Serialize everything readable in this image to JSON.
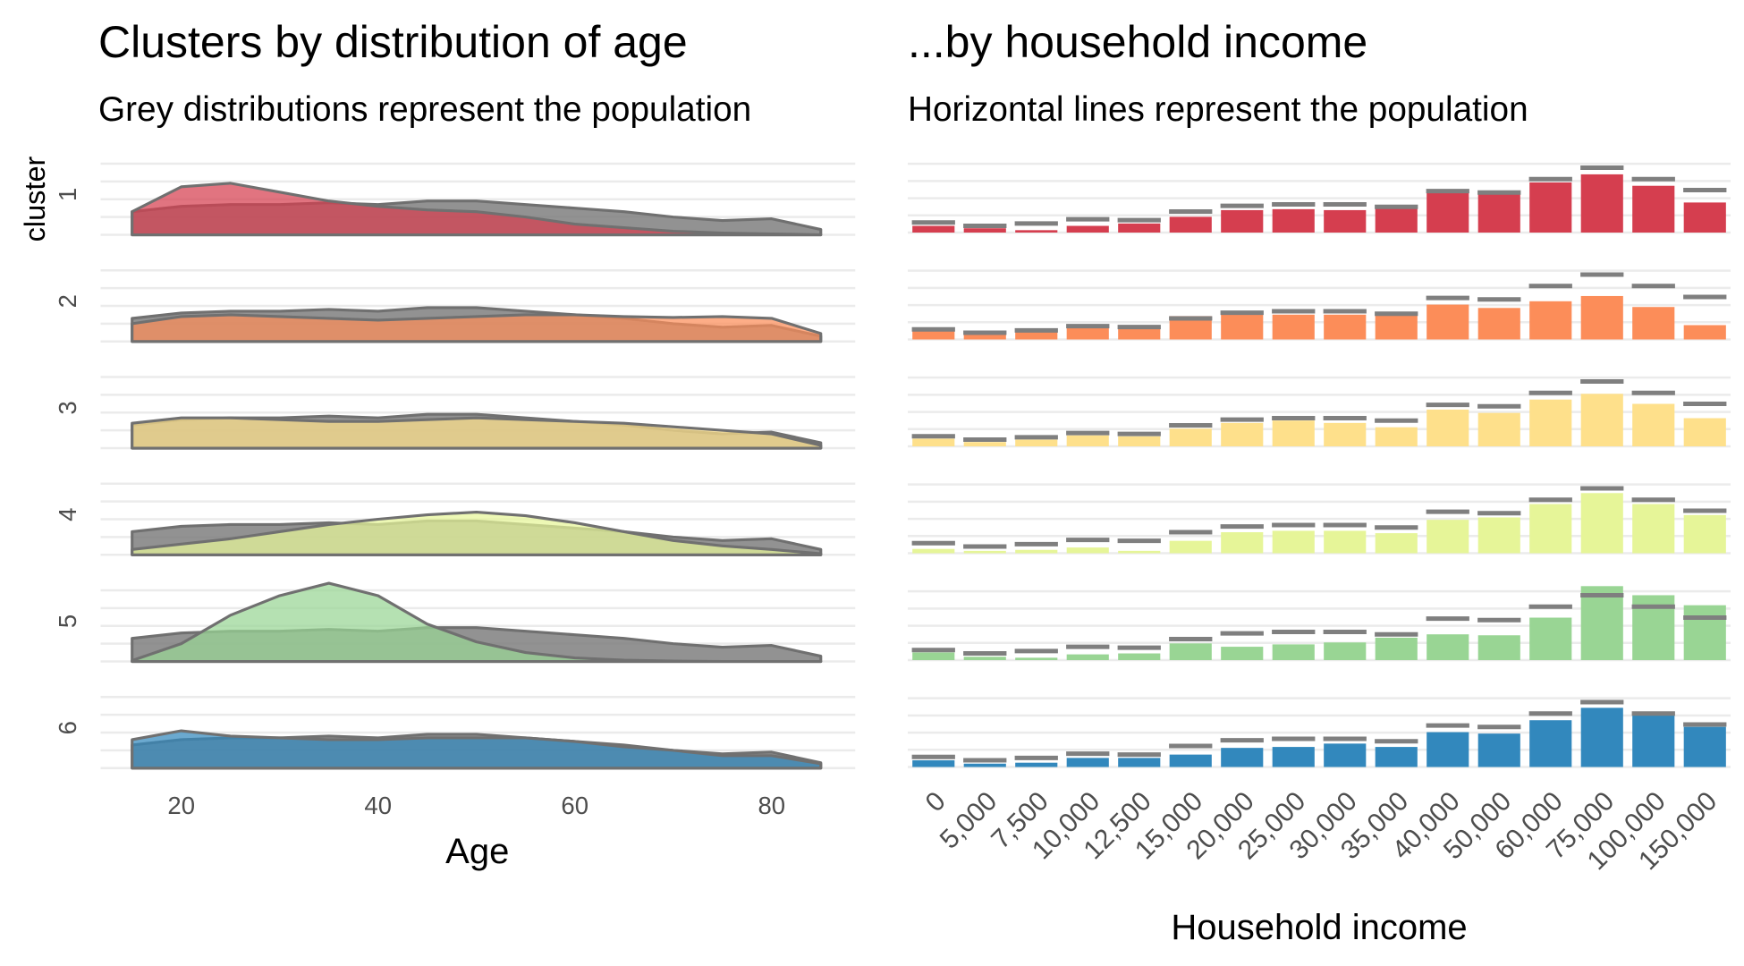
{
  "chart_data": [
    {
      "type": "ridgeline",
      "title": "Clusters by distribution of age",
      "subtitle": "Grey distributions represent the population",
      "x_label": "Age",
      "y_label": "cluster",
      "x": [
        15,
        20,
        25,
        30,
        35,
        40,
        45,
        50,
        55,
        60,
        65,
        70,
        75,
        80,
        85
      ],
      "categories": [
        "1",
        "2",
        "3",
        "4",
        "5",
        "6"
      ],
      "population_color": "#7f7f7f",
      "population_values": [
        0.013,
        0.016,
        0.017,
        0.017,
        0.018,
        0.017,
        0.019,
        0.019,
        0.017,
        0.015,
        0.013,
        0.01,
        0.008,
        0.009,
        0.003
      ],
      "series": [
        {
          "color": "#d53e4f",
          "values": [
            0.013,
            0.027,
            0.029,
            0.024,
            0.019,
            0.016,
            0.014,
            0.013,
            0.01,
            0.006,
            0.004,
            0.002,
            0.001,
            0.0005,
            0
          ]
        },
        {
          "color": "#fc8d59",
          "values": [
            0.01,
            0.014,
            0.015,
            0.014,
            0.013,
            0.012,
            0.013,
            0.014,
            0.015,
            0.015,
            0.014,
            0.0135,
            0.014,
            0.013,
            0.0045
          ]
        },
        {
          "color": "#fee08b",
          "values": [
            0.014,
            0.017,
            0.017,
            0.016,
            0.015,
            0.015,
            0.016,
            0.017,
            0.016,
            0.015,
            0.014,
            0.012,
            0.01,
            0.008,
            0.0015
          ]
        },
        {
          "color": "#e6f598",
          "values": [
            0.003,
            0.006,
            0.009,
            0.013,
            0.017,
            0.02,
            0.0225,
            0.024,
            0.022,
            0.018,
            0.013,
            0.008,
            0.005,
            0.003,
            0.0006
          ]
        },
        {
          "color": "#99d594",
          "values": [
            0.0005,
            0.01,
            0.026,
            0.037,
            0.044,
            0.037,
            0.021,
            0.011,
            0.005,
            0.002,
            0.0007,
            0.0002,
            0,
            0,
            0
          ]
        },
        {
          "color": "#3288bd",
          "values": [
            0.016,
            0.021,
            0.018,
            0.017,
            0.016,
            0.016,
            0.017,
            0.017,
            0.017,
            0.015,
            0.012,
            0.01,
            0.007,
            0.007,
            0.0025
          ]
        }
      ],
      "xlim": [
        11.8,
        88.5
      ],
      "xticks": [
        20,
        40,
        60,
        80
      ],
      "ylim": [
        0,
        0.06
      ],
      "yticks": [
        0,
        0.01,
        0.02,
        0.03,
        0.04
      ],
      "grid": true
    },
    {
      "type": "bar_ridge",
      "title": "...by household income",
      "subtitle": "Horizontal lines represent the population",
      "x_label": "Household income",
      "categories": [
        "0",
        "5,000",
        "7,500",
        "10,000",
        "12,500",
        "15,000",
        "20,000",
        "25,000",
        "30,000",
        "35,000",
        "40,000",
        "50,000",
        "60,000",
        "75,000",
        "100,000",
        "150,000"
      ],
      "population_color": "#7f7f7f",
      "population_values": [
        2.1,
        1.4,
        1.9,
        2.8,
        2.6,
        4.4,
        5.6,
        5.9,
        5.9,
        5.4,
        8.7,
        8.4,
        11.2,
        13.6,
        11.2,
        8.9
      ],
      "series": [
        {
          "color": "#d53e4f",
          "values": [
            1.4,
            0.9,
            0.5,
            1.4,
            1.9,
            3.3,
            4.7,
            4.9,
            4.7,
            5.2,
            8.4,
            8.0,
            10.5,
            12.2,
            9.8,
            6.3
          ]
        },
        {
          "color": "#fc8d59",
          "values": [
            1.9,
            1.2,
            2.3,
            2.8,
            2.3,
            4.9,
            5.2,
            5.2,
            5.2,
            5.4,
            7.3,
            6.6,
            8.0,
            9.1,
            6.8,
            3.0
          ]
        },
        {
          "color": "#fee08b",
          "values": [
            1.6,
            0.9,
            1.4,
            2.3,
            2.1,
            3.7,
            4.9,
            5.4,
            4.9,
            4.0,
            7.7,
            7.0,
            9.8,
            11.0,
            8.9,
            5.9
          ]
        },
        {
          "color": "#e6f598",
          "values": [
            0.9,
            0.5,
            0.7,
            1.2,
            0.5,
            2.6,
            4.4,
            4.7,
            4.7,
            4.2,
            7.0,
            7.5,
            10.3,
            12.6,
            10.3,
            8.0
          ]
        },
        {
          "color": "#99d594",
          "values": [
            1.6,
            0.7,
            0.5,
            1.2,
            1.4,
            3.5,
            2.8,
            3.3,
            3.7,
            4.7,
            5.4,
            5.2,
            8.9,
            15.5,
            13.6,
            11.5
          ]
        },
        {
          "color": "#3288bd",
          "values": [
            1.4,
            0.7,
            0.9,
            1.9,
            1.9,
            2.6,
            4.0,
            4.2,
            4.9,
            4.2,
            7.3,
            7.0,
            9.8,
            12.4,
            10.8,
            8.4
          ]
        }
      ],
      "ylim": [
        0,
        22.4
      ],
      "yticks": [
        0,
        3.6,
        7.2,
        10.8,
        14.4
      ],
      "grid": true
    }
  ]
}
